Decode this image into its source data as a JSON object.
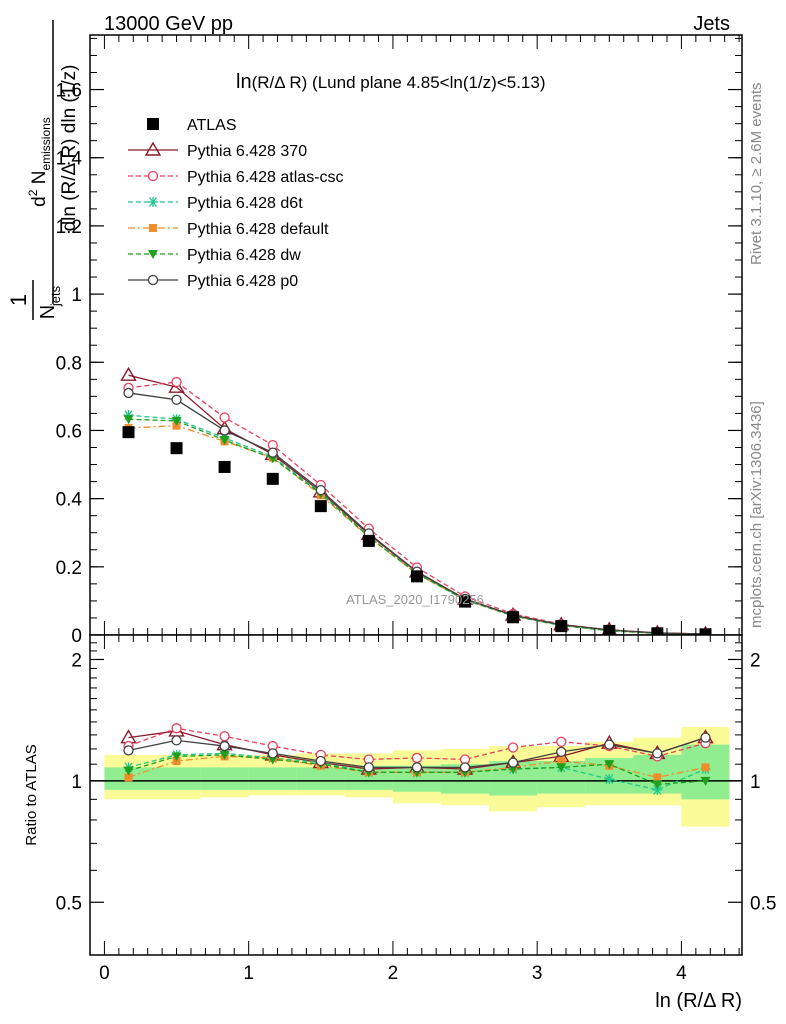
{
  "header": {
    "left": "13000 GeV pp",
    "right": "Jets"
  },
  "side_labels": {
    "rivet": "Rivet 3.1.10, ≥ 2.6M events",
    "mcplots": "mcplots.cern.ch [arXiv:1306.3436]"
  },
  "watermark": "ATLAS_2020_I1790256",
  "colors": {
    "atlas": "#000000",
    "p370": "#8b1a2b",
    "atlascsc": "#e8405c",
    "d6t": "#1ec88c",
    "default": "#f08c2a",
    "dw": "#1ea01e",
    "p0": "#404040",
    "band_inner": "#90ee90",
    "band_outer": "#fafa96"
  },
  "chart_data": [
    {
      "type": "scatter",
      "title_main": "ln",
      "title_sub": "(R/Δ R)",
      "title_rest": " (Lund plane 4.85<ln(1/z)<5.13)",
      "xlabel": "ln (R/Δ R)",
      "ylabel": "1/N_jets d²N_emissions / dln(R/ΔR) dln(1/z)",
      "ylabel_parts": {
        "one": "1",
        "n": "N",
        "jets": "jets",
        "dln": "dln (R/Δ R) dln (1/z)",
        "d2": "d",
        "sq": "2",
        "nem": " N",
        "emissions": "emissions"
      },
      "xlim": [
        -0.1,
        4.42
      ],
      "ylim": [
        0,
        1.76
      ],
      "yticks": [
        0,
        0.2,
        0.4,
        0.6,
        0.8,
        1,
        1.2,
        1.4,
        1.6
      ],
      "ytick_labels": [
        "0",
        "0.2",
        "0.4",
        "0.6",
        "0.8",
        "1",
        "1.2",
        "1.4",
        "1.6"
      ],
      "x": [
        0.167,
        0.5,
        0.833,
        1.167,
        1.5,
        1.833,
        2.167,
        2.5,
        2.833,
        3.167,
        3.5,
        3.833,
        4.167
      ],
      "series": [
        {
          "name": "ATLAS",
          "key": "atlas",
          "marker": "square",
          "line": "none",
          "values": [
            0.595,
            0.548,
            0.493,
            0.458,
            0.378,
            0.276,
            0.172,
            0.098,
            0.052,
            0.026,
            0.012,
            0.005,
            0.002
          ]
        },
        {
          "name": "Pythia 6.428 370",
          "key": "p370",
          "marker": "triangle-open",
          "line": "solid",
          "values": [
            0.762,
            0.727,
            0.605,
            0.53,
            0.42,
            0.295,
            0.185,
            0.105,
            0.058,
            0.03,
            0.015,
            0.006,
            0.003
          ]
        },
        {
          "name": "Pythia 6.428 atlas-csc",
          "key": "atlascsc",
          "marker": "circle-open",
          "line": "dashed",
          "values": [
            0.725,
            0.742,
            0.638,
            0.557,
            0.44,
            0.312,
            0.198,
            0.113,
            0.062,
            0.032,
            0.015,
            0.006,
            0.003
          ]
        },
        {
          "name": "Pythia 6.428 d6t",
          "key": "d6t",
          "marker": "star",
          "line": "dashed",
          "values": [
            0.645,
            0.633,
            0.578,
            0.523,
            0.418,
            0.288,
            0.18,
            0.103,
            0.056,
            0.028,
            0.012,
            0.0045,
            0.002
          ]
        },
        {
          "name": "Pythia 6.428 default",
          "key": "default",
          "marker": "square-small",
          "line": "dashdot",
          "values": [
            0.607,
            0.614,
            0.568,
            0.52,
            0.41,
            0.287,
            0.18,
            0.103,
            0.056,
            0.029,
            0.013,
            0.005,
            0.0022
          ]
        },
        {
          "name": "Pythia 6.428 dw",
          "key": "dw",
          "marker": "triangle-down",
          "line": "dashed",
          "values": [
            0.633,
            0.628,
            0.572,
            0.518,
            0.415,
            0.288,
            0.18,
            0.103,
            0.056,
            0.028,
            0.013,
            0.005,
            0.002
          ]
        },
        {
          "name": "Pythia 6.428 p0",
          "key": "p0",
          "marker": "circle-open",
          "line": "solid",
          "values": [
            0.71,
            0.69,
            0.6,
            0.535,
            0.425,
            0.298,
            0.186,
            0.106,
            0.058,
            0.03,
            0.015,
            0.006,
            0.003
          ]
        }
      ]
    },
    {
      "type": "scatter",
      "ylabel": "Ratio to ATLAS",
      "xlim": [
        -0.1,
        4.42
      ],
      "ylim": [
        0.37,
        2.3
      ],
      "yticks": [
        0.5,
        1,
        2
      ],
      "ytick_labels": [
        "0.5",
        "1",
        "2"
      ],
      "xticks": [
        0,
        1,
        2,
        3,
        4
      ],
      "xtick_labels": [
        "0",
        "1",
        "2",
        "3",
        "4"
      ],
      "x_edges": [
        0,
        0.333,
        0.667,
        1,
        1.333,
        1.667,
        2,
        2.333,
        2.667,
        3,
        3.333,
        3.667,
        4,
        4.333
      ],
      "band_inner": [
        [
          0.95,
          1.08
        ],
        [
          0.95,
          1.08
        ],
        [
          0.95,
          1.08
        ],
        [
          0.95,
          1.08
        ],
        [
          0.95,
          1.08
        ],
        [
          0.95,
          1.09
        ],
        [
          0.94,
          1.09
        ],
        [
          0.93,
          1.1
        ],
        [
          0.92,
          1.12
        ],
        [
          0.93,
          1.12
        ],
        [
          0.93,
          1.14
        ],
        [
          0.93,
          1.16
        ],
        [
          0.9,
          1.23
        ]
      ],
      "band_outer": [
        [
          0.9,
          1.16
        ],
        [
          0.9,
          1.16
        ],
        [
          0.91,
          1.16
        ],
        [
          0.92,
          1.16
        ],
        [
          0.92,
          1.17
        ],
        [
          0.91,
          1.17
        ],
        [
          0.88,
          1.19
        ],
        [
          0.87,
          1.2
        ],
        [
          0.84,
          1.22
        ],
        [
          0.86,
          1.22
        ],
        [
          0.87,
          1.25
        ],
        [
          0.87,
          1.28
        ],
        [
          0.77,
          1.36
        ]
      ],
      "ref_line": 1,
      "series": [
        {
          "key": "p370",
          "values": [
            1.28,
            1.33,
            1.23,
            1.16,
            1.11,
            1.07,
            1.08,
            1.07,
            1.11,
            1.15,
            1.24,
            1.17,
            1.28
          ]
        },
        {
          "key": "atlascsc",
          "values": [
            1.22,
            1.35,
            1.29,
            1.22,
            1.16,
            1.13,
            1.14,
            1.13,
            1.21,
            1.25,
            1.22,
            1.15,
            1.24
          ]
        },
        {
          "key": "d6t",
          "values": [
            1.08,
            1.16,
            1.17,
            1.14,
            1.11,
            1.05,
            1.05,
            1.05,
            1.07,
            1.08,
            1.01,
            0.95,
            1.07
          ]
        },
        {
          "key": "default",
          "values": [
            1.02,
            1.12,
            1.15,
            1.14,
            1.09,
            1.05,
            1.05,
            1.05,
            1.08,
            1.12,
            1.09,
            1.02,
            1.08
          ]
        },
        {
          "key": "dw",
          "values": [
            1.06,
            1.15,
            1.16,
            1.13,
            1.1,
            1.05,
            1.05,
            1.05,
            1.07,
            1.08,
            1.1,
            0.98,
            1.0
          ]
        },
        {
          "key": "p0",
          "values": [
            1.19,
            1.26,
            1.22,
            1.17,
            1.12,
            1.08,
            1.08,
            1.08,
            1.11,
            1.18,
            1.23,
            1.17,
            1.28
          ]
        }
      ]
    }
  ]
}
